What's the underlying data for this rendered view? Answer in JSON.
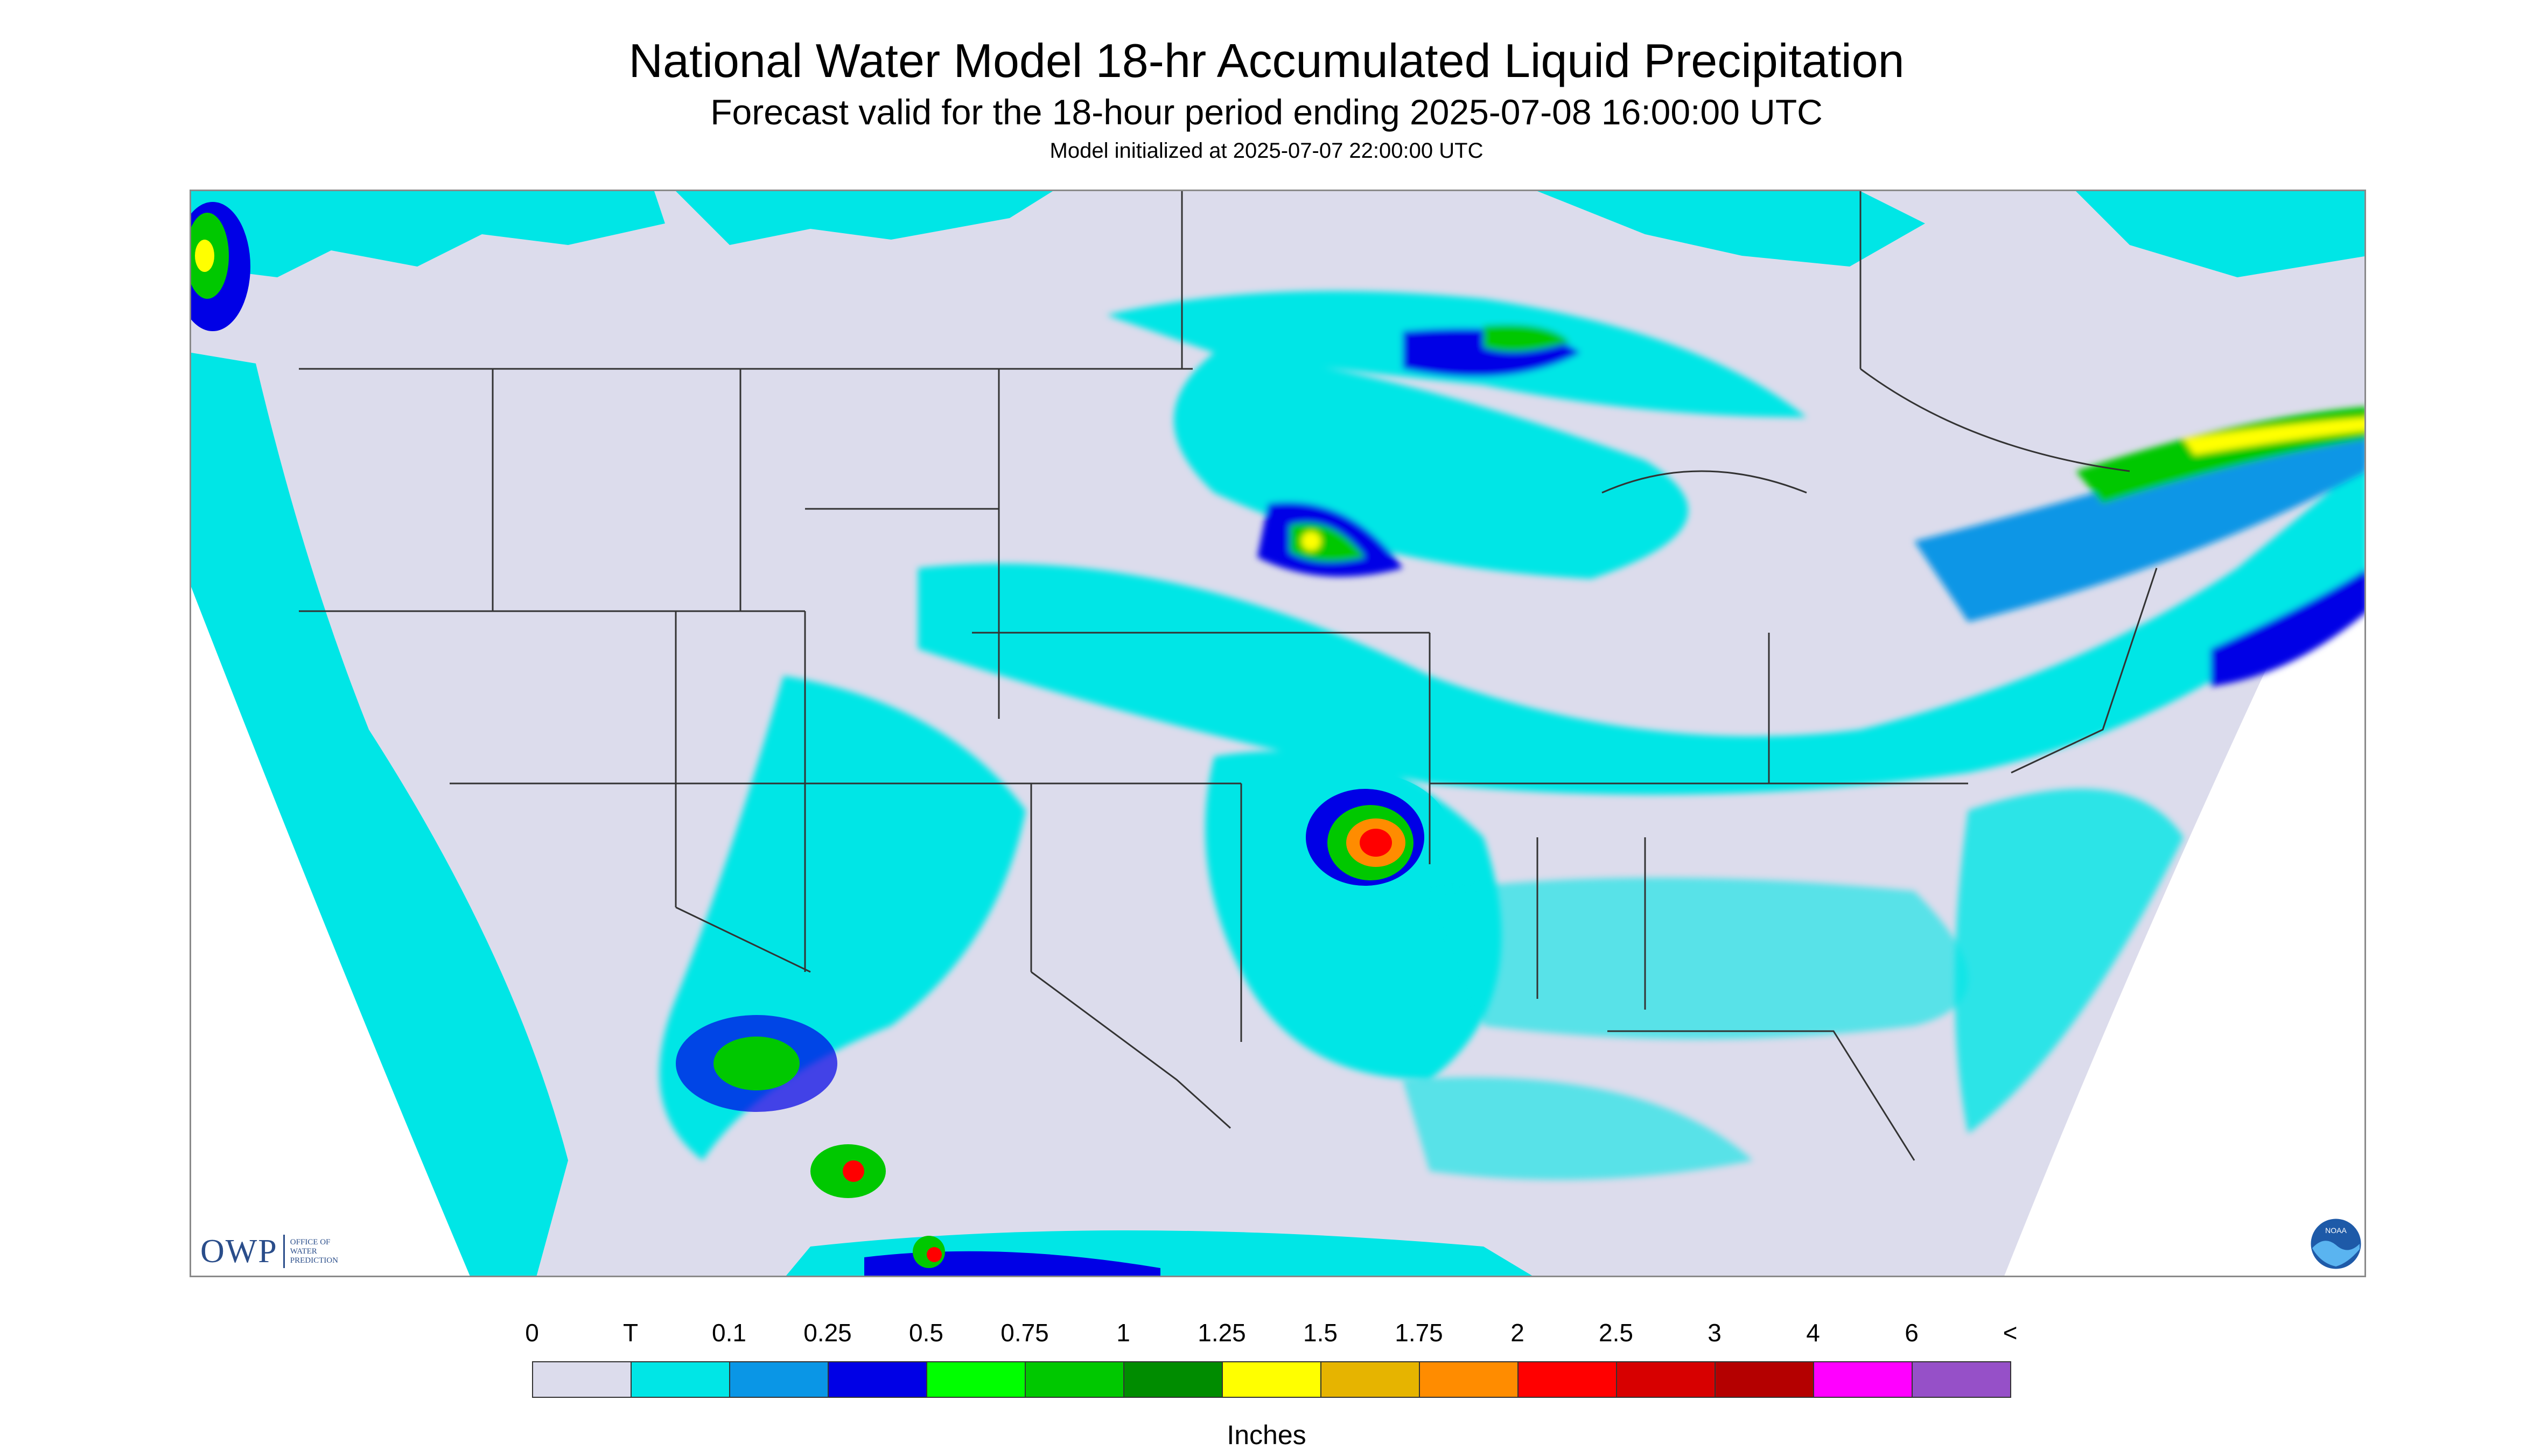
{
  "header": {
    "title": "National Water Model 18-hr Accumulated Liquid Precipitation",
    "subtitle": "Forecast valid for the 18-hour period ending 2025-07-08 16:00:00 UTC",
    "init_line": "Model initialized at 2025-07-07 22:00:00 UTC"
  },
  "map": {
    "projection_fill_color": "#dcdcec",
    "outside_color": "#ffffff",
    "boundary_color": "#333333",
    "precip_bands": [
      {
        "range": "T",
        "color": "#00e6e6"
      },
      {
        "range": "0.1-0.25",
        "color": "#0a96e6"
      },
      {
        "range": "0.25-0.5",
        "color": "#0000e6"
      },
      {
        "range": "0.5-0.75",
        "color": "#00ff00"
      },
      {
        "range": "0.75-1",
        "color": "#00c800"
      },
      {
        "range": "1-1.25",
        "color": "#008c00"
      },
      {
        "range": "1.25-1.5",
        "color": "#ffff00"
      },
      {
        "range": "1.5-1.75",
        "color": "#e6b400"
      },
      {
        "range": "1.75-2",
        "color": "#ff8c00"
      },
      {
        "range": "2-2.5",
        "color": "#ff0000"
      }
    ]
  },
  "logos": {
    "owp_mark": "OWP",
    "owp_text": "OFFICE OF WATER PREDICTION",
    "noaa_text": "NOAA"
  },
  "legend": {
    "labels": [
      "0",
      "T",
      "0.1",
      "0.25",
      "0.5",
      "0.75",
      "1",
      "1.25",
      "1.5",
      "1.75",
      "2",
      "2.5",
      "3",
      "4",
      "6",
      "<"
    ],
    "colors": [
      "#dcdcec",
      "#00e6e6",
      "#0a96e6",
      "#0000e6",
      "#00ff00",
      "#00c800",
      "#008c00",
      "#ffff00",
      "#e6b400",
      "#ff8c00",
      "#ff0000",
      "#d70000",
      "#b40000",
      "#ff00ff",
      "#9650c8"
    ],
    "units": "Inches"
  }
}
